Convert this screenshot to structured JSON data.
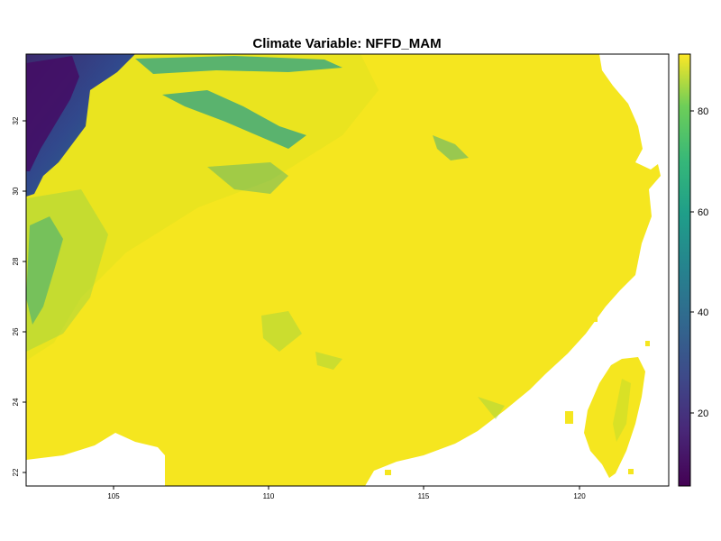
{
  "title": "Climate Variable: NFFD_MAM",
  "map": {
    "variable": "NFFD_MAM",
    "x_ticks": [
      "105",
      "110",
      "115",
      "120"
    ],
    "y_ticks": [
      "22",
      "24",
      "26",
      "28",
      "30",
      "32"
    ],
    "xlim": [
      102,
      123
    ],
    "ylim": [
      21.6,
      33.9
    ],
    "palette": "viridis",
    "colors": {
      "low": "#440154",
      "mid_low": "#3b528b",
      "mid": "#21918c",
      "mid_high": "#5ec962",
      "high": "#fde725",
      "background": "#ffffff"
    }
  },
  "legend": {
    "range": [
      5,
      91
    ],
    "ticks": [
      "20",
      "40",
      "60",
      "80"
    ]
  }
}
